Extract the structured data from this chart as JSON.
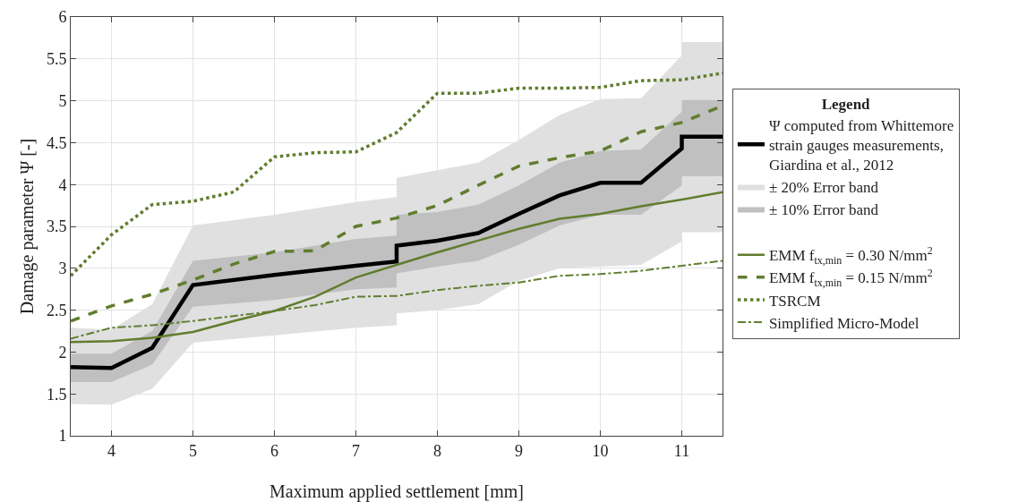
{
  "chart_data": {
    "type": "line",
    "xlabel": "Maximum applied settlement [mm]",
    "ylabel": "Damage parameter Ψ [-]",
    "legend_title": "Legend",
    "x": [
      3.5,
      4,
      4.5,
      5,
      5.5,
      6,
      6.5,
      7,
      7.5,
      8,
      8.5,
      9,
      9.5,
      10,
      10.5,
      11,
      11.5
    ],
    "series": [
      {
        "name": "Ψ computed from Whittemore strain gauges measurements, Giardina et al., 2012",
        "type": "line",
        "color": "#000000",
        "line_style": "solid",
        "x": [
          3.5,
          4,
          4.5,
          5,
          6,
          7,
          7.5,
          7.5,
          8,
          8.5,
          9,
          9.5,
          10,
          10.5,
          11,
          11,
          11.5
        ],
        "values": [
          1.82,
          1.81,
          2.05,
          2.8,
          2.92,
          3.03,
          3.08,
          3.27,
          3.33,
          3.42,
          3.65,
          3.87,
          4.02,
          4.02,
          4.43,
          4.57,
          4.57
        ]
      },
      {
        "name": "± 20% Error band",
        "type": "line",
        "color": "#e0e0e0",
        "x": [
          3.5,
          4,
          4.5,
          5,
          6,
          7,
          7.5,
          7.5,
          8,
          8.5,
          9,
          9.5,
          10,
          10.5,
          11,
          11,
          11.5
        ],
        "values": [
          null,
          null,
          null,
          null,
          null,
          null,
          null,
          null,
          null,
          null,
          null,
          null,
          null,
          null,
          null,
          null,
          null
        ],
        "lower": [
          1.38,
          1.37,
          1.56,
          2.11,
          2.2,
          2.29,
          2.32,
          2.46,
          2.5,
          2.57,
          2.85,
          3.0,
          3.02,
          3.04,
          3.32,
          3.43,
          3.43
        ],
        "upper": [
          2.29,
          2.27,
          2.57,
          3.51,
          3.64,
          3.79,
          3.85,
          4.08,
          4.17,
          4.26,
          4.53,
          4.83,
          5.02,
          5.03,
          5.54,
          5.7,
          5.7
        ]
      },
      {
        "name": "± 10% Error band",
        "type": "line",
        "color": "#c0c0c0",
        "x": [
          3.5,
          4,
          4.5,
          5,
          6,
          7,
          7.5,
          7.5,
          8,
          8.5,
          9,
          9.5,
          10,
          10.5,
          11,
          11,
          11.5
        ],
        "values": [
          null,
          null,
          null,
          null,
          null,
          null,
          null,
          null,
          null,
          null,
          null,
          null,
          null,
          null,
          null,
          null,
          null
        ],
        "lower": [
          1.64,
          1.64,
          1.85,
          2.54,
          2.62,
          2.75,
          2.77,
          2.94,
          3.02,
          3.09,
          3.28,
          3.51,
          3.64,
          3.64,
          3.99,
          4.1,
          4.1
        ],
        "upper": [
          1.98,
          1.98,
          2.25,
          3.09,
          3.19,
          3.35,
          3.39,
          3.64,
          3.67,
          3.76,
          3.99,
          4.26,
          4.4,
          4.42,
          4.87,
          5.01,
          5.01
        ]
      },
      {
        "name": "EMM f$_{tx,min}$ = 0.30 N/mm$^{2}$",
        "type": "line",
        "color": "#617d2e",
        "line_style": "solid",
        "values": [
          2.12,
          2.13,
          2.17,
          2.24,
          2.37,
          2.49,
          2.66,
          2.89,
          3.04,
          3.19,
          3.33,
          3.47,
          3.59,
          3.65,
          3.74,
          3.82,
          3.91
        ]
      },
      {
        "name": "EMM f$_{tx,min}$ = 0.15 N/mm$^{2}$",
        "type": "line",
        "color": "#617d2e",
        "line_style": "dashed",
        "values": [
          2.37,
          2.55,
          2.69,
          2.86,
          3.05,
          3.2,
          3.21,
          3.5,
          3.6,
          3.75,
          3.99,
          4.22,
          4.32,
          4.4,
          4.63,
          4.74,
          4.94
        ]
      },
      {
        "name": "TSRCM",
        "type": "line",
        "color": "#617d2e",
        "line_style": "dotted",
        "values": [
          2.91,
          3.4,
          3.76,
          3.8,
          3.91,
          4.33,
          4.38,
          4.39,
          4.62,
          5.09,
          5.09,
          5.15,
          5.15,
          5.16,
          5.24,
          5.25,
          5.33
        ]
      },
      {
        "name": "Simplified Micro-Model",
        "type": "line",
        "color": "#617d2e",
        "line_style": "dashdot",
        "values": [
          2.16,
          2.29,
          2.32,
          2.37,
          2.43,
          2.49,
          2.56,
          2.66,
          2.67,
          2.74,
          2.79,
          2.83,
          2.91,
          2.93,
          2.97,
          3.03,
          3.09
        ]
      }
    ],
    "xlim": [
      3.5,
      11.5
    ],
    "xticks": [
      4,
      5,
      6,
      7,
      8,
      9,
      10,
      11
    ],
    "ylim": [
      1,
      6
    ],
    "yticks": [
      1,
      1.5,
      2,
      2.5,
      3,
      3.5,
      4,
      4.5,
      5,
      5.5,
      6
    ],
    "grid": true,
    "legend": "right",
    "marker": "none"
  }
}
